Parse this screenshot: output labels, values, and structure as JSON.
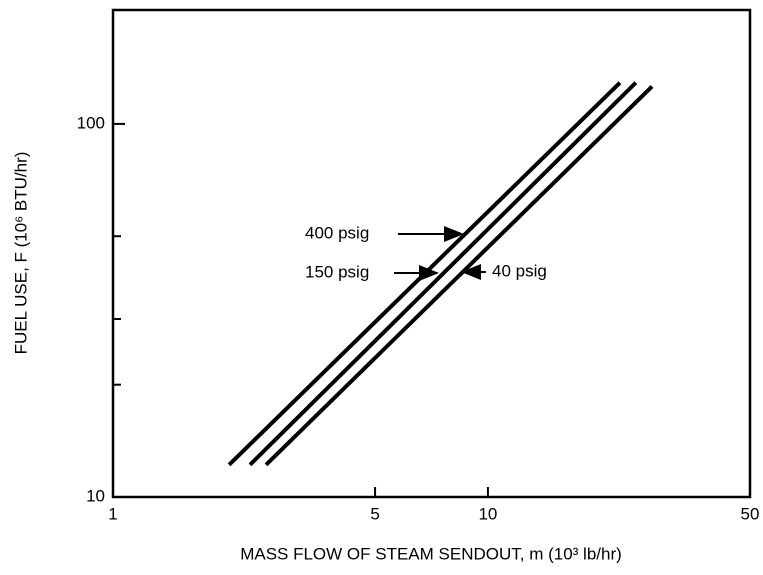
{
  "chart_data": {
    "type": "line",
    "xlabel": "MASS FLOW OF STEAM SENDOUT, m (10³ lb/hr)",
    "ylabel": "FUEL USE, F (10⁶ BTU/hr)",
    "xscale": "log",
    "yscale": "log",
    "xlim": [
      1,
      50
    ],
    "ylim": [
      10,
      202
    ],
    "xticks": [
      1,
      5,
      10,
      50
    ],
    "yticks": [
      10,
      100
    ],
    "yminorticks": [
      20,
      30,
      50
    ],
    "color": "#000000",
    "series": [
      {
        "name": "400 psig",
        "x": [
          2.04,
          22.5
        ],
        "values": [
          12.2,
          129
        ]
      },
      {
        "name": "150 psig",
        "x": [
          2.32,
          24.8
        ],
        "values": [
          12.2,
          129
        ]
      },
      {
        "name": "40 psig",
        "x": [
          2.56,
          27.4
        ],
        "values": [
          12.2,
          126
        ]
      }
    ]
  }
}
